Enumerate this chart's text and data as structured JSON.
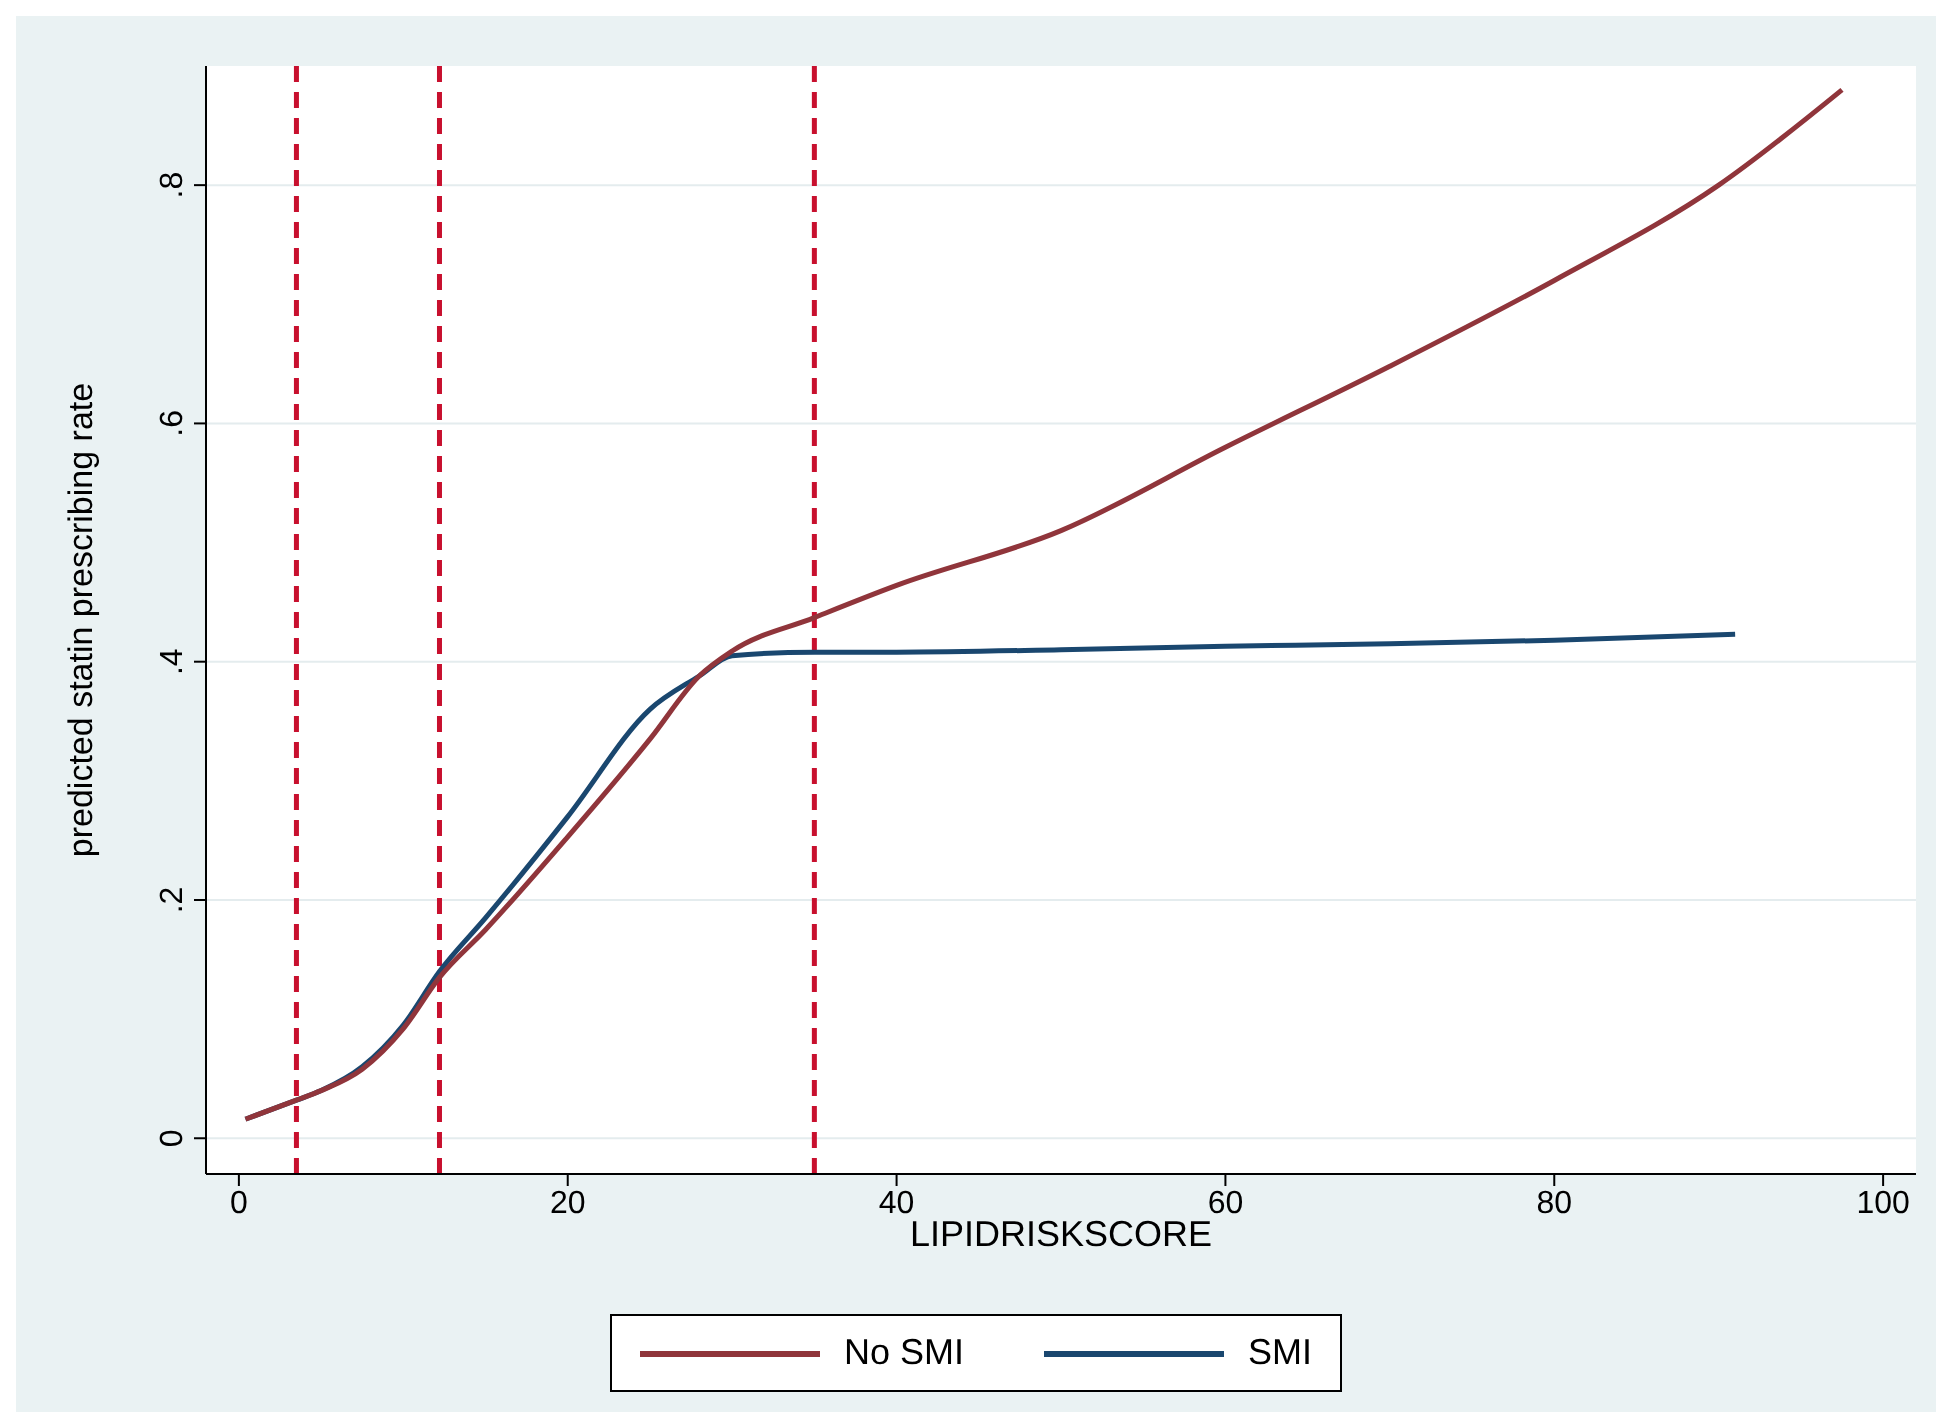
{
  "chart_data": {
    "type": "line",
    "xlabel": "LIPIDRISKSCORE",
    "ylabel": "predicted statin prescribing rate",
    "xlim": [
      -2,
      102
    ],
    "xticks": [
      0,
      20,
      40,
      60,
      80,
      100
    ],
    "ylim": [
      -0.03,
      0.9
    ],
    "yticks": [
      {
        "value": 0,
        "label": "0"
      },
      {
        "value": 0.2,
        "label": ".2"
      },
      {
        "value": 0.4,
        "label": ".4"
      },
      {
        "value": 0.6,
        "label": ".6"
      },
      {
        "value": 0.8,
        "label": ".8"
      }
    ],
    "grid": "y",
    "legend": "bottom",
    "marker": "none",
    "line_style": "solid",
    "series": [
      {
        "name": "SMI",
        "color": "#1a476f",
        "x": [
          0.4,
          3.5,
          5,
          7.5,
          10,
          12.2,
          15,
          20,
          25,
          28,
          30,
          35,
          40,
          50,
          60,
          70,
          80,
          91
        ],
        "values": [
          0.016,
          0.032,
          0.04,
          0.06,
          0.095,
          0.14,
          0.185,
          0.27,
          0.36,
          0.388,
          0.405,
          0.408,
          0.408,
          0.41,
          0.413,
          0.415,
          0.418,
          0.423
        ]
      },
      {
        "name": "No SMI",
        "color": "#90353b",
        "x": [
          0.4,
          3.5,
          5,
          7.5,
          10,
          12.2,
          15,
          20,
          25,
          28,
          30,
          35,
          40,
          50,
          60,
          70,
          80,
          90,
          97.5
        ],
        "values": [
          0.016,
          0.032,
          0.04,
          0.058,
          0.092,
          0.135,
          0.175,
          0.253,
          0.335,
          0.388,
          0.409,
          0.437,
          0.464,
          0.51,
          0.58,
          0.648,
          0.72,
          0.8,
          0.88
        ]
      }
    ],
    "ref_lines": [
      {
        "axis": "x",
        "value": 3.5,
        "color": "#c8102e",
        "line_style": "dashed"
      },
      {
        "axis": "x",
        "value": 12.2,
        "color": "#c8102e",
        "line_style": "dashed"
      },
      {
        "axis": "x",
        "value": 35,
        "color": "#c8102e",
        "line_style": "dashed"
      }
    ]
  }
}
